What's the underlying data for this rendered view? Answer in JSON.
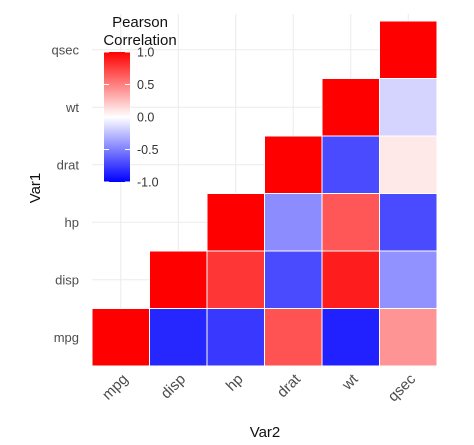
{
  "chart_data": {
    "type": "heatmap",
    "title": "",
    "xlabel": "Var2",
    "ylabel": "Var1",
    "x_categories": [
      "mpg",
      "disp",
      "hp",
      "drat",
      "wt",
      "qsec"
    ],
    "y_categories": [
      "mpg",
      "disp",
      "hp",
      "drat",
      "wt",
      "qsec"
    ],
    "cells": [
      {
        "x": "mpg",
        "y": "mpg",
        "value": 1.0
      },
      {
        "x": "disp",
        "y": "mpg",
        "value": -0.85
      },
      {
        "x": "hp",
        "y": "mpg",
        "value": -0.78
      },
      {
        "x": "drat",
        "y": "mpg",
        "value": 0.68
      },
      {
        "x": "wt",
        "y": "mpg",
        "value": -0.87
      },
      {
        "x": "qsec",
        "y": "mpg",
        "value": 0.42
      },
      {
        "x": "disp",
        "y": "disp",
        "value": 1.0
      },
      {
        "x": "hp",
        "y": "disp",
        "value": 0.79
      },
      {
        "x": "drat",
        "y": "disp",
        "value": -0.71
      },
      {
        "x": "wt",
        "y": "disp",
        "value": 0.89
      },
      {
        "x": "qsec",
        "y": "disp",
        "value": -0.43
      },
      {
        "x": "hp",
        "y": "hp",
        "value": 1.0
      },
      {
        "x": "drat",
        "y": "hp",
        "value": -0.45
      },
      {
        "x": "wt",
        "y": "hp",
        "value": 0.66
      },
      {
        "x": "qsec",
        "y": "hp",
        "value": -0.71
      },
      {
        "x": "drat",
        "y": "drat",
        "value": 1.0
      },
      {
        "x": "wt",
        "y": "drat",
        "value": -0.71
      },
      {
        "x": "qsec",
        "y": "drat",
        "value": 0.09
      },
      {
        "x": "wt",
        "y": "wt",
        "value": 1.0
      },
      {
        "x": "qsec",
        "y": "wt",
        "value": -0.17
      },
      {
        "x": "qsec",
        "y": "qsec",
        "value": 1.0
      }
    ],
    "color_scale": {
      "low": "#0000ff",
      "mid": "#ffffff",
      "high": "#ff0000",
      "limits": [
        -1,
        1
      ]
    },
    "legend": {
      "title_lines": [
        "Pearson",
        "Correlation"
      ],
      "ticks": [
        1.0,
        0.5,
        0.0,
        -0.5,
        -1.0
      ],
      "tick_labels": [
        "1.0",
        "0.5",
        "0.0",
        "-0.5",
        "-1.0"
      ],
      "placement": "top-left"
    },
    "grid": true
  }
}
